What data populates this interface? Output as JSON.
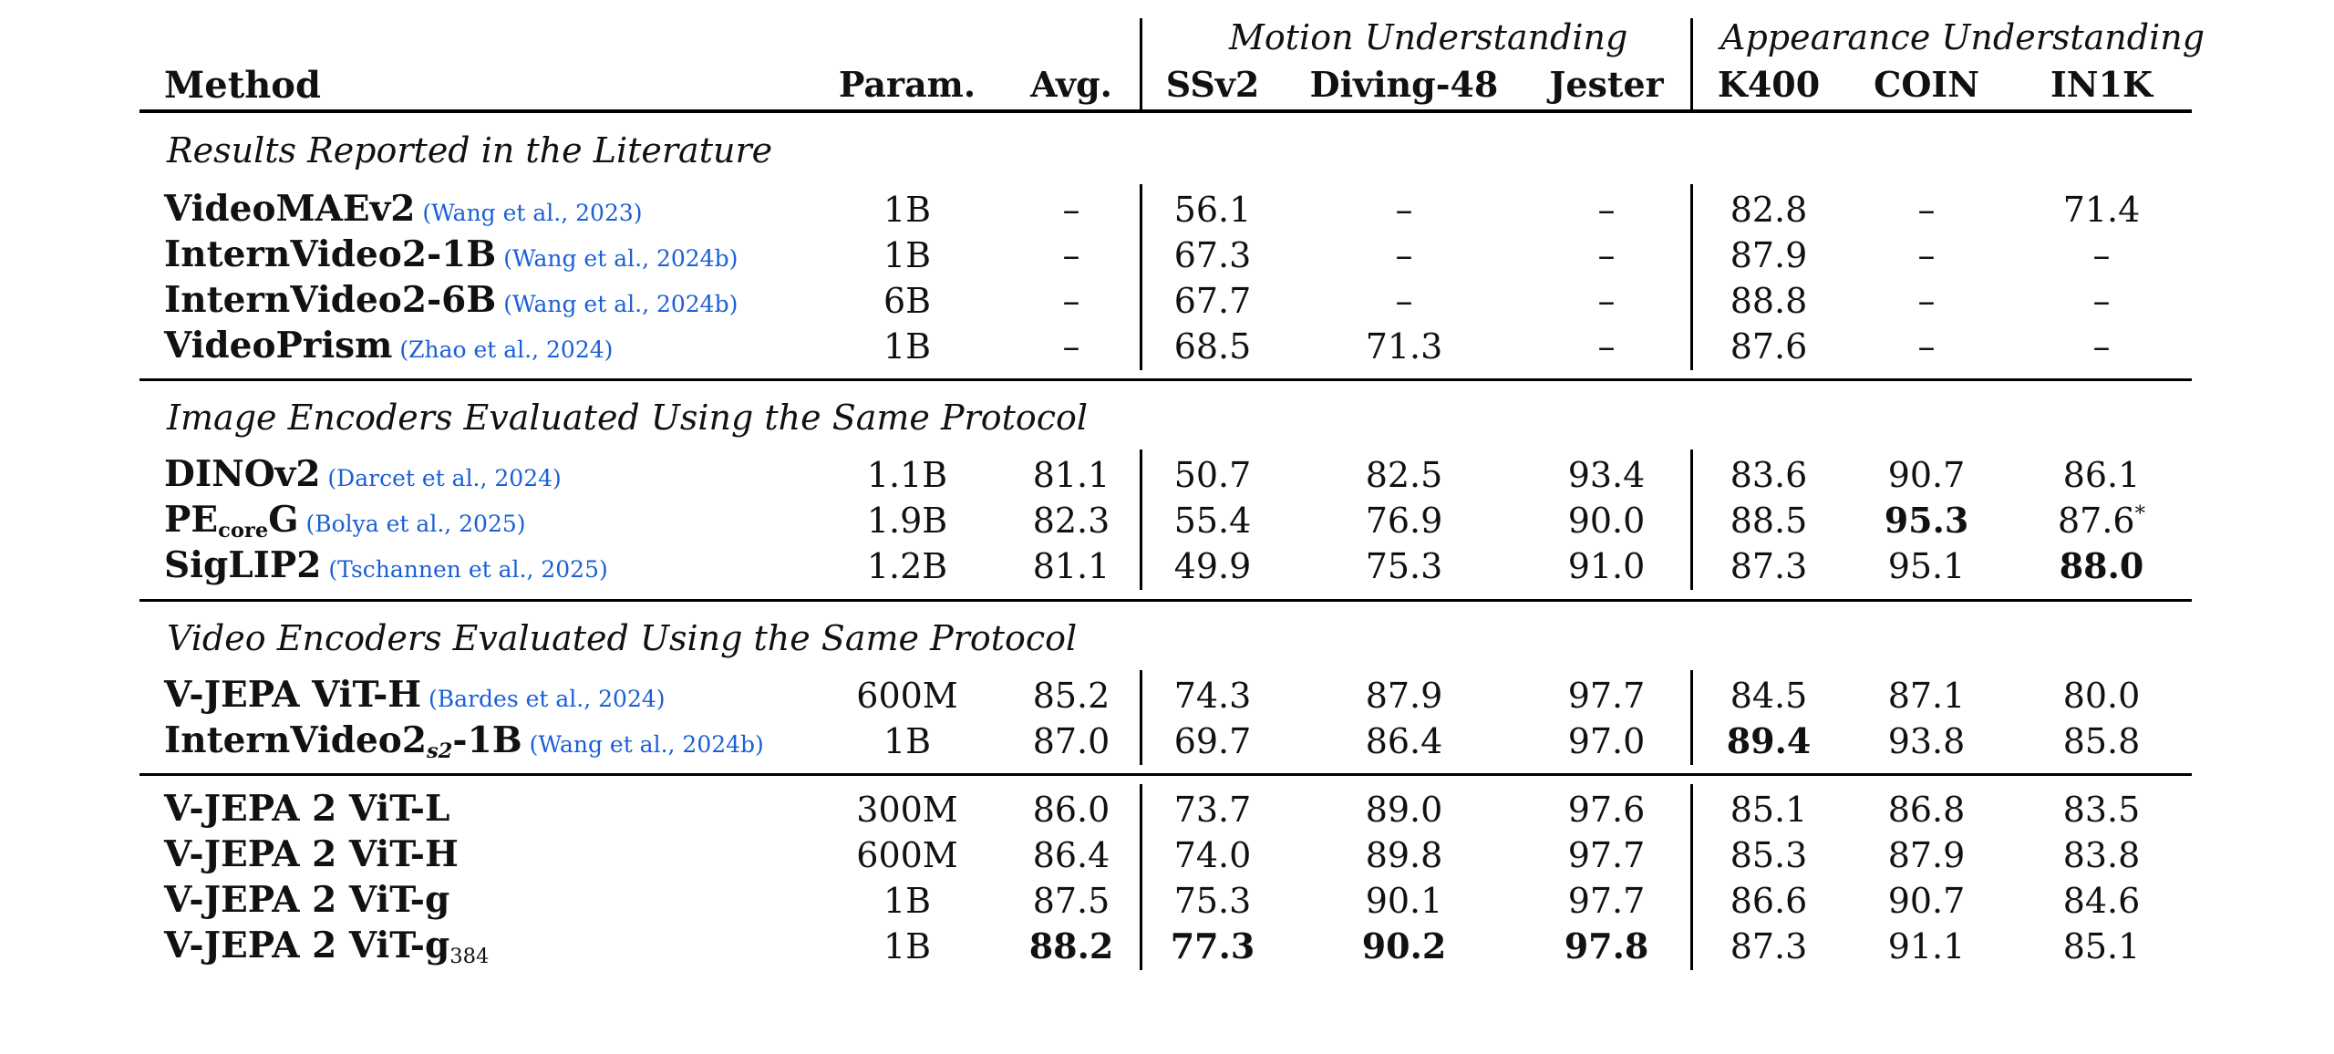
{
  "header": {
    "method": "Method",
    "param": "Param.",
    "avg": "Avg.",
    "motion_group": "Motion Understanding",
    "appearance_group": "Appearance Understanding",
    "cols": [
      "SSv2",
      "Diving-48",
      "Jester",
      "K400",
      "COIN",
      "IN1K"
    ]
  },
  "sections": [
    {
      "title": "Results Reported in the Literature",
      "rows": [
        {
          "name": "VideoMAEv2",
          "cite": "(Wang et al., 2023)",
          "param": "1B",
          "avg": "–",
          "vals": [
            "56.1",
            "–",
            "–",
            "82.8",
            "–",
            "71.4"
          ]
        },
        {
          "name": "InternVideo2-1B",
          "cite": "(Wang et al., 2024b)",
          "param": "1B",
          "avg": "–",
          "vals": [
            "67.3",
            "–",
            "–",
            "87.9",
            "–",
            "–"
          ]
        },
        {
          "name": "InternVideo2-6B",
          "cite": "(Wang et al., 2024b)",
          "param": "6B",
          "avg": "–",
          "vals": [
            "67.7",
            "–",
            "–",
            "88.8",
            "–",
            "–"
          ]
        },
        {
          "name": "VideoPrism",
          "cite": "(Zhao et al., 2024)",
          "param": "1B",
          "avg": "–",
          "vals": [
            "68.5",
            "71.3",
            "–",
            "87.6",
            "–",
            "–"
          ]
        }
      ]
    },
    {
      "title": "Image Encoders Evaluated Using the Same Protocol",
      "rows": [
        {
          "name": "DINOv2",
          "cite": "(Darcet et al., 2024)",
          "param": "1.1B",
          "avg": "81.1",
          "vals": [
            "50.7",
            "82.5",
            "93.4",
            "83.6",
            "90.7",
            "86.1"
          ]
        },
        {
          "name_main": "PE",
          "name_sub": "core",
          "name_after": "G",
          "cite": "(Bolya et al., 2025)",
          "param": "1.9B",
          "avg": "82.3",
          "vals": [
            "55.4",
            "76.9",
            "90.0",
            "88.5",
            "95.3",
            "87.6"
          ],
          "in1k_mark": "*"
        },
        {
          "name": "SigLIP2",
          "cite": "(Tschannen et al., 2025)",
          "param": "1.2B",
          "avg": "81.1",
          "vals": [
            "49.9",
            "75.3",
            "91.0",
            "87.3",
            "95.1",
            "88.0"
          ]
        }
      ]
    },
    {
      "title": "Video Encoders Evaluated Using the Same Protocol",
      "rows": [
        {
          "name": "V-JEPA ViT-H",
          "cite": "(Bardes et al., 2024)",
          "param": "600M",
          "avg": "85.2",
          "vals": [
            "74.3",
            "87.9",
            "97.7",
            "84.5",
            "87.1",
            "80.0"
          ]
        },
        {
          "name_main": "InternVideo2",
          "name_sub": "s2",
          "name_after": "-1B",
          "cite": "(Wang et al., 2024b)",
          "param": "1B",
          "avg": "87.0",
          "vals": [
            "69.7",
            "86.4",
            "97.0",
            "89.4",
            "93.8",
            "85.8"
          ]
        }
      ]
    },
    {
      "title": "",
      "rows": [
        {
          "name": "V-JEPA 2 ViT-L",
          "param": "300M",
          "avg": "86.0",
          "vals": [
            "73.7",
            "89.0",
            "97.6",
            "85.1",
            "86.8",
            "83.5"
          ]
        },
        {
          "name": "V-JEPA 2 ViT-H",
          "param": "600M",
          "avg": "86.4",
          "vals": [
            "74.0",
            "89.8",
            "97.7",
            "85.3",
            "87.9",
            "83.8"
          ]
        },
        {
          "name": "V-JEPA 2 ViT-g",
          "param": "1B",
          "avg": "87.5",
          "vals": [
            "75.3",
            "90.1",
            "97.7",
            "86.6",
            "90.7",
            "84.6"
          ]
        },
        {
          "name_main": "V-JEPA 2 ViT-g",
          "name_sub": "384",
          "param": "1B",
          "avg": "88.2",
          "vals": [
            "77.3",
            "90.2",
            "97.8",
            "87.3",
            "91.1",
            "85.1"
          ]
        }
      ]
    }
  ],
  "bold_cells": [
    "1.1.4",
    "1.2.5",
    "2.1.3",
    "3.3.avg",
    "3.3.0",
    "3.3.1",
    "3.3.2"
  ],
  "colors": {
    "citation": "#1a5fd6",
    "text": "#111111",
    "rule": "#000000"
  }
}
